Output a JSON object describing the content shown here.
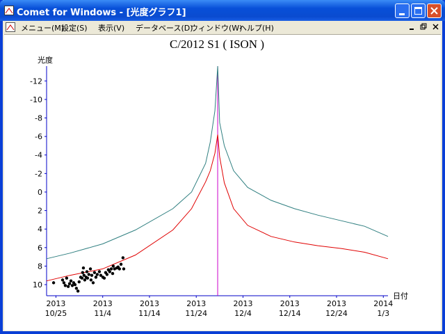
{
  "window": {
    "title": "Comet for Windows - [光度グラフ1]",
    "menu": [
      "メニュー(M)",
      "設定(S)",
      "表示(V)",
      "データベース(D)",
      "ウィンドウ(W)",
      "ヘルプ(H)"
    ]
  },
  "chart_data": {
    "type": "line",
    "title": "C/2012 S1 ( ISON )",
    "y_label": "光度",
    "x_label": "日付",
    "xlim": [
      "2013-10-23",
      "2014-01-04"
    ],
    "xticks": [
      {
        "value": "2013-10-25",
        "label": [
          "2013",
          "10/25"
        ]
      },
      {
        "value": "2013-11-04",
        "label": [
          "2013",
          "11/4"
        ]
      },
      {
        "value": "2013-11-14",
        "label": [
          "2013",
          "11/14"
        ]
      },
      {
        "value": "2013-11-24",
        "label": [
          "2013",
          "11/24"
        ]
      },
      {
        "value": "2013-12-04",
        "label": [
          "2013",
          "12/4"
        ]
      },
      {
        "value": "2013-12-14",
        "label": [
          "2013",
          "12/14"
        ]
      },
      {
        "value": "2013-12-24",
        "label": [
          "2013",
          "12/24"
        ]
      },
      {
        "value": "2014-01-03",
        "label": [
          "2014",
          "1/3"
        ]
      }
    ],
    "ylim": [
      11.2,
      -13.6
    ],
    "yticks": [
      -12,
      -10,
      -8,
      -6,
      -4,
      -2,
      0,
      2,
      4,
      6,
      8,
      10
    ],
    "axis_color": "#0000c8",
    "vlines": [
      {
        "x": "2013-11-28T14:00",
        "color": "#cc00cc"
      }
    ],
    "series": [
      {
        "type": "line",
        "color": "#2f7f80",
        "x": [
          "2013-10-23",
          "2013-10-28",
          "2013-11-04",
          "2013-11-11",
          "2013-11-19",
          "2013-11-23",
          "2013-11-26",
          "2013-11-27",
          "2013-11-28",
          "2013-11-28T14:00",
          "2013-11-29",
          "2013-11-30",
          "2013-12-02",
          "2013-12-05",
          "2013-12-10",
          "2013-12-15",
          "2013-12-20",
          "2013-12-25",
          "2013-12-30",
          "2014-01-04"
        ],
        "values": [
          7.2,
          6.6,
          5.6,
          4.1,
          1.8,
          0,
          -3.1,
          -5.4,
          -8.8,
          -13.6,
          -7.5,
          -5.0,
          -2.3,
          -0.5,
          0.9,
          1.8,
          2.5,
          3.1,
          3.7,
          4.8
        ]
      },
      {
        "type": "line",
        "color": "#e00000",
        "x": [
          "2013-10-23",
          "2013-10-28",
          "2013-11-04",
          "2013-11-11",
          "2013-11-19",
          "2013-11-23",
          "2013-11-26",
          "2013-11-27",
          "2013-11-28",
          "2013-11-28T14:00",
          "2013-11-29",
          "2013-11-30",
          "2013-12-02",
          "2013-12-05",
          "2013-12-10",
          "2013-12-15",
          "2013-12-20",
          "2013-12-25",
          "2013-12-30",
          "2014-01-04"
        ],
        "values": [
          9.6,
          9.0,
          8.3,
          6.8,
          4.1,
          1.8,
          -1.1,
          -2.3,
          -4.2,
          -6.2,
          -3.8,
          -1.0,
          1.8,
          3.6,
          4.8,
          5.4,
          5.8,
          6.1,
          6.5,
          7.2
        ]
      },
      {
        "type": "scatter",
        "color": "#000000",
        "x": [
          "2013-10-24T12:00",
          "2013-10-26T10:00",
          "2013-10-26T17:00",
          "2013-10-27T00:00",
          "2013-10-27T07:00",
          "2013-10-27T15:00",
          "2013-10-27T22:00",
          "2013-10-28T05:00",
          "2013-10-28T12:00",
          "2013-10-28T19:00",
          "2013-10-29T02:00",
          "2013-10-29T09:00",
          "2013-10-29T17:00",
          "2013-10-29T23:00",
          "2013-10-30T07:00",
          "2013-10-30T14:00",
          "2013-10-30T17:00",
          "2013-10-30T21:00",
          "2013-10-31T00:00",
          "2013-10-31T04:00",
          "2013-10-31T11:00",
          "2013-10-31T15:00",
          "2013-10-31T18:00",
          "2013-11-01T01:00",
          "2013-11-01T09:00",
          "2013-11-01T12:00",
          "2013-11-01T16:00",
          "2013-11-01T23:00",
          "2013-11-02T06:00",
          "2013-11-02T13:00",
          "2013-11-02T20:00",
          "2013-11-03T07:00",
          "2013-11-03T14:00",
          "2013-11-04T01:00",
          "2013-11-04T08:00",
          "2013-11-04T15:00",
          "2013-11-04T22:00",
          "2013-11-05T05:00",
          "2013-11-05T12:00",
          "2013-11-05T20:00",
          "2013-11-06T03:00",
          "2013-11-06T06:00",
          "2013-11-06T13:00",
          "2013-11-07T00:00",
          "2013-11-07T07:00",
          "2013-11-07T14:00",
          "2013-11-07T22:00",
          "2013-11-08T08:00",
          "2013-11-08T12:00"
        ],
        "values": [
          9.8,
          9.5,
          9.8,
          10.1,
          9.3,
          10.2,
          9.9,
          9.6,
          10.1,
          9.8,
          10.0,
          10.4,
          10.7,
          9.7,
          9.2,
          9.3,
          8.7,
          8.2,
          9.0,
          9.5,
          9.2,
          8.6,
          9.3,
          8.9,
          8.3,
          9.5,
          9.0,
          9.8,
          8.7,
          9.2,
          8.9,
          8.6,
          9.0,
          9.2,
          9.3,
          8.7,
          8.9,
          8.4,
          8.6,
          8.3,
          8.8,
          8.0,
          8.3,
          8.2,
          8.1,
          8.3,
          7.8,
          7.1,
          8.3
        ]
      }
    ]
  }
}
